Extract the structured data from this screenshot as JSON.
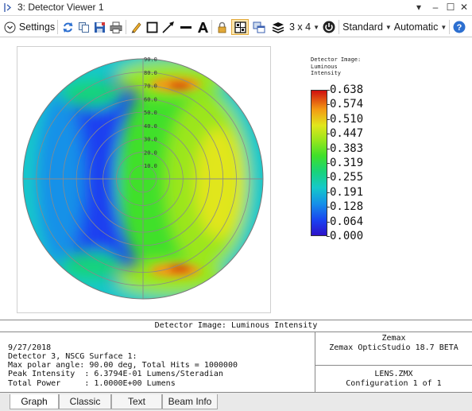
{
  "window": {
    "title": "3: Detector Viewer 1",
    "controls": [
      "▾",
      "–",
      "☐",
      "✕"
    ]
  },
  "toolbar": {
    "settings_label": "Settings",
    "layout_label": "3 x 4",
    "standard_label": "Standard",
    "automatic_label": "Automatic"
  },
  "plot": {
    "ring_labels": [
      "90.0",
      "80.0",
      "70.0",
      "60.0",
      "50.0",
      "40.0",
      "30.0",
      "20.0",
      "10.0"
    ],
    "legend_title_lines": [
      "Detector Image:",
      "Luminous",
      "Intensity"
    ],
    "colorbar_ticks": [
      "0.638",
      "0.574",
      "0.510",
      "0.447",
      "0.383",
      "0.319",
      "0.255",
      "0.191",
      "0.128",
      "0.064",
      "0.000"
    ],
    "colors": {
      "blue": "#1a40f0",
      "cyan": "#15c9c9",
      "green": "#3fe02a",
      "yellow": "#e1e61c",
      "orange": "#f39a14",
      "red": "#d01010"
    }
  },
  "info": {
    "title": "Detector Image: Luminous Intensity",
    "date": "9/27/2018",
    "line_detector": "Detector 3, NSCG Surface 1:",
    "line_polar": "Max polar angle: 90.00 deg, Total Hits = 1000000",
    "line_peak": "Peak Intensity  : 6.3794E-01 Lumens/Steradian",
    "line_power": "Total Power     : 1.0000E+00 Lumens",
    "company": "Zemax",
    "product": "Zemax OpticStudio 18.7  BETA",
    "file": "LENS.ZMX",
    "configuration": "Configuration 1 of 1"
  },
  "tabs": [
    "Graph",
    "Classic",
    "Text",
    "Beam Info"
  ],
  "active_tab": "Graph"
}
